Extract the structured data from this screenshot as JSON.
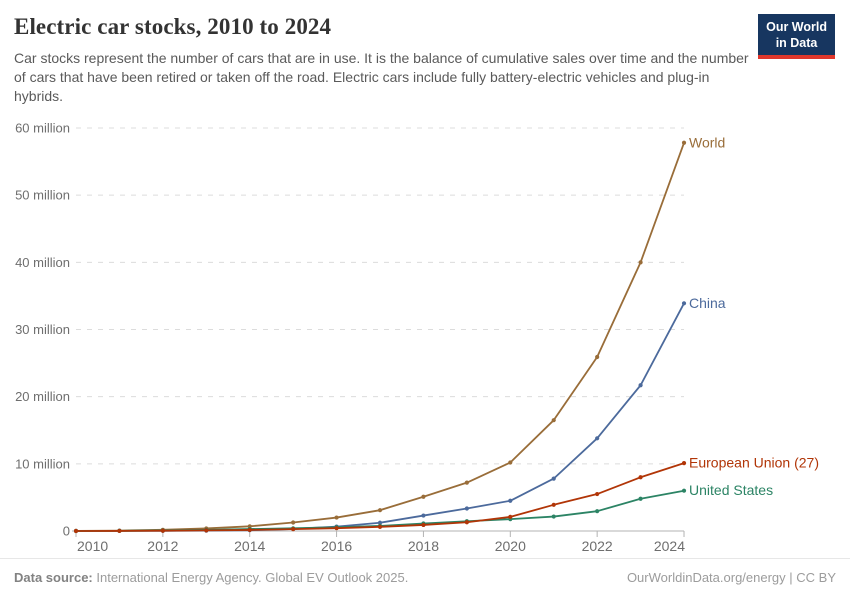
{
  "header": {
    "title": "Electric car stocks, 2010 to 2024",
    "subtitle": "Car stocks represent the number of cars that are in use. It is the balance of cumulative sales over time and the number of cars that have been retired or taken off the road. Electric cars include fully battery-electric vehicles and plug-in hybrids.",
    "logo": {
      "line1": "Our World",
      "line2": "in Data",
      "bg_color": "#173660",
      "accent_color": "#e0372c"
    }
  },
  "chart_data": {
    "type": "line",
    "title": "Electric car stocks, 2010 to 2024",
    "xlabel": "",
    "ylabel": "",
    "unit": "million cars",
    "x": [
      2010,
      2011,
      2012,
      2013,
      2014,
      2015,
      2016,
      2017,
      2018,
      2019,
      2020,
      2021,
      2022,
      2023,
      2024
    ],
    "series": [
      {
        "name": "World",
        "color": "#996D39",
        "values": [
          0.02,
          0.06,
          0.18,
          0.38,
          0.7,
          1.26,
          2.0,
          3.1,
          5.1,
          7.2,
          10.2,
          16.5,
          25.9,
          40.0,
          57.8
        ]
      },
      {
        "name": "China",
        "color": "#4C6A9C",
        "values": [
          0.01,
          0.02,
          0.03,
          0.06,
          0.12,
          0.31,
          0.65,
          1.23,
          2.3,
          3.35,
          4.5,
          7.8,
          13.8,
          21.7,
          33.9
        ]
      },
      {
        "name": "European Union (27)",
        "color": "#B13507",
        "values": [
          0.0,
          0.01,
          0.04,
          0.09,
          0.16,
          0.28,
          0.42,
          0.62,
          0.9,
          1.3,
          2.1,
          3.9,
          5.5,
          8.0,
          10.1
        ]
      },
      {
        "name": "United States",
        "color": "#2C8465",
        "values": [
          0.0,
          0.02,
          0.07,
          0.17,
          0.29,
          0.4,
          0.56,
          0.76,
          1.12,
          1.45,
          1.77,
          2.15,
          2.95,
          4.8,
          6.0
        ]
      }
    ],
    "ylim": [
      0,
      60
    ],
    "yticks": [
      {
        "value": 0,
        "label": "0"
      },
      {
        "value": 10,
        "label": "10 million"
      },
      {
        "value": 20,
        "label": "20 million"
      },
      {
        "value": 30,
        "label": "30 million"
      },
      {
        "value": 40,
        "label": "40 million"
      },
      {
        "value": 50,
        "label": "50 million"
      },
      {
        "value": 60,
        "label": "60 million"
      }
    ],
    "xticks": [
      2010,
      2012,
      2014,
      2016,
      2018,
      2020,
      2022,
      2024
    ],
    "grid": "horizontal-dashed",
    "legend_position": "end-of-line-labels",
    "draw_order": [
      0,
      1,
      3,
      2
    ],
    "colors": {
      "gridline": "#dcdcdc",
      "axis_line": "#b3b3b3",
      "tick_text": "#6e6e6e"
    }
  },
  "footer": {
    "datasource_label": "Data source:",
    "datasource_text": " International Energy Agency. Global EV Outlook 2025.",
    "credit": "OurWorldinData.org/energy | CC BY"
  }
}
